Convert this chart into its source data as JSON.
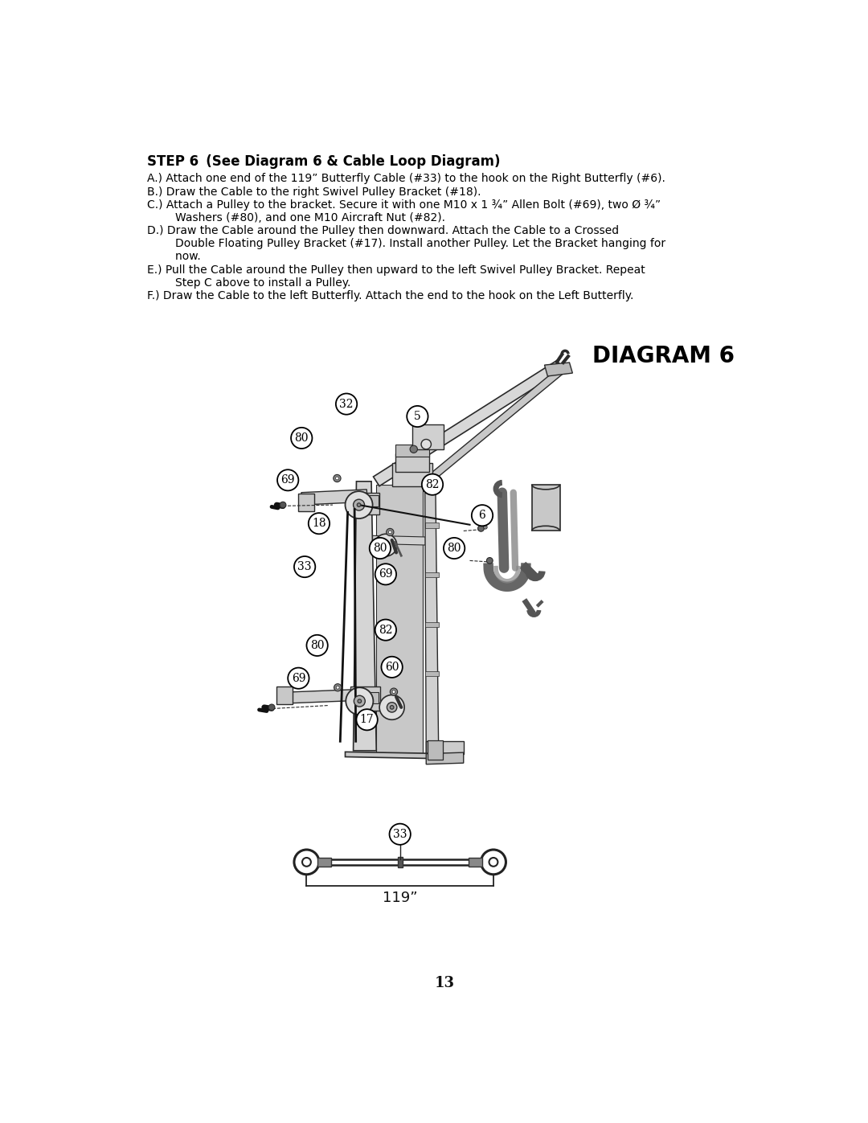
{
  "title_bold": "STEP 6",
  "title_rest": "   (See Diagram 6 & Cable Loop Diagram)",
  "diagram_label": "DIAGRAM 6",
  "page_number": "13",
  "lines": [
    "A.) Attach one end of the 119” Butterfly Cable (#33) to the hook on the Right Butterfly (#6).",
    "B.) Draw the Cable to the right Swivel Pulley Bracket (#18).",
    "C.) Attach a Pulley to the bracket. Secure it with one M10 x 1 ¾” Allen Bolt (#69), two Ø ¾”",
    "        Washers (#80), and one M10 Aircraft Nut (#82).",
    "D.) Draw the Cable around the Pulley then downward. Attach the Cable to a Crossed",
    "        Double Floating Pulley Bracket (#17). Install another Pulley. Let the Bracket hanging for",
    "        now.",
    "E.) Pull the Cable around the Pulley then upward to the left Swivel Pulley Bracket. Repeat",
    "        Step C above to install a Pulley.",
    "F.) Draw the Cable to the left Butterfly. Attach the end to the hook on the Left Butterfly."
  ],
  "background_color": "#ffffff",
  "text_color": "#000000"
}
